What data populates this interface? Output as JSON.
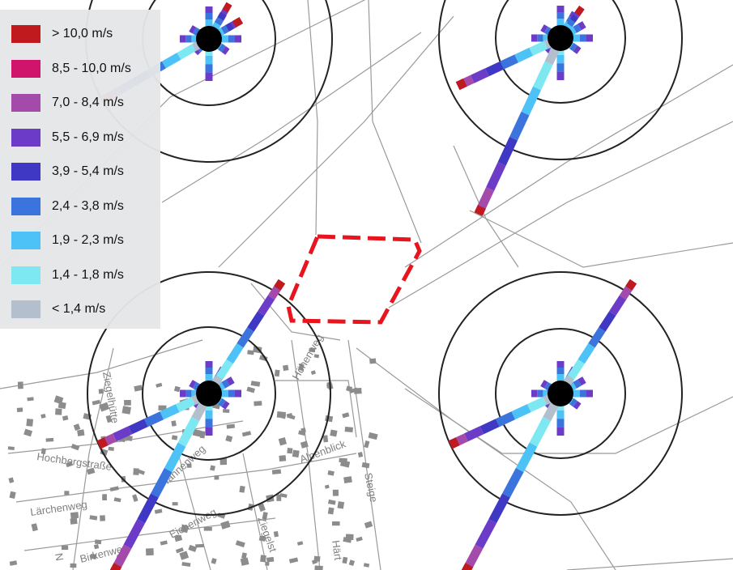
{
  "legend": {
    "items": [
      {
        "label": "> 10,0 m/s",
        "color": "#c0191e"
      },
      {
        "label": "8,5 - 10,0 m/s",
        "color": "#d0146c"
      },
      {
        "label": "7,0 - 8,4 m/s",
        "color": "#a44aaa"
      },
      {
        "label": "5,5 - 6,9 m/s",
        "color": "#6c3cc8"
      },
      {
        "label": "3,9 - 5,4 m/s",
        "color": "#3e38c4"
      },
      {
        "label": "2,4 - 3,8 m/s",
        "color": "#3a74dc"
      },
      {
        "label": "1,9 - 2,3 m/s",
        "color": "#4cc2f6"
      },
      {
        "label": "1,4 - 1,8 m/s",
        "color": "#7ee8f2"
      },
      {
        "label": "< 1,4 m/s",
        "color": "#b4bfcd"
      }
    ]
  },
  "streets": {
    "ziegelhuette": "Ziegelhütte",
    "hochbergstrasse": "Hochbergstraße",
    "laerchenweg": "Lärchenweg",
    "eichenweg": "Eichenweg",
    "birkenweg": "Birkenweg",
    "tannenweg": "Tannenweg",
    "hoehenweg": "Höhenweg",
    "alpenblick": "Alpenblick",
    "steige": "Steige",
    "hartweg": "Härt",
    "ziegelstrasse": "Ziegelst",
    "n_fragment": "N"
  },
  "colors": {
    "target_area": "#e8141e",
    "zone_rings": "#222222",
    "roads": "#9a9a9a",
    "buildings": "#8c8c8c",
    "turbine": "#000000"
  },
  "turbines": [
    {
      "id": "turbine-top-left"
    },
    {
      "id": "turbine-top-right"
    },
    {
      "id": "turbine-bottom-left"
    },
    {
      "id": "turbine-bottom-right"
    }
  ]
}
